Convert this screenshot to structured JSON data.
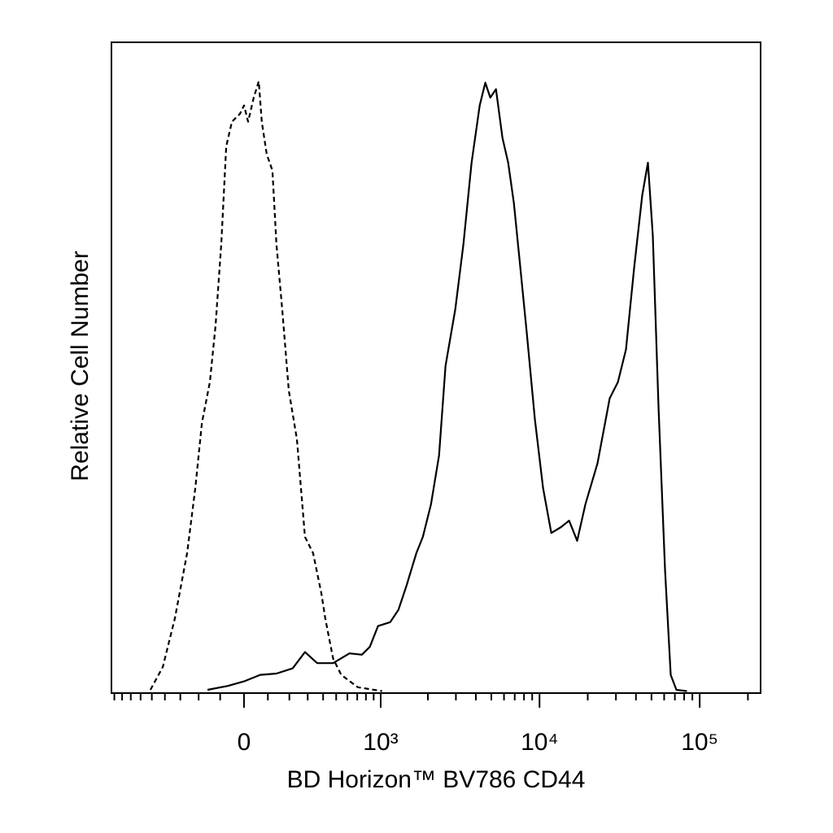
{
  "chart_data": {
    "type": "line",
    "xlabel": "BD Horizon™ BV786 CD44",
    "ylabel": "Relative Cell Number",
    "xscale": "biexponential",
    "xlim": [
      -940,
      240000
    ],
    "ylim": [
      0,
      100
    ],
    "xticks": [
      0,
      {
        "value": 1000,
        "label": "10³"
      },
      {
        "value": 10000,
        "label": "10⁴"
      },
      {
        "value": 100000,
        "label": "10⁵"
      }
    ],
    "xminor_ticks": [
      -900,
      -800,
      -700,
      -600,
      -500,
      -400,
      -300,
      -200,
      -100,
      100,
      200,
      300,
      400,
      500,
      600,
      700,
      800,
      900,
      2000,
      3000,
      4000,
      5000,
      6000,
      7000,
      8000,
      9000,
      20000,
      30000,
      40000,
      50000,
      60000,
      70000,
      80000,
      90000,
      200000
    ],
    "series": [
      {
        "color": "#000000",
        "dashed": true,
        "x": [
          -512,
          -415,
          -333,
          -261,
          -217,
          -184,
          -146,
          -120,
          -95,
          -74,
          -50,
          -17,
          0,
          17,
          40,
          61,
          74,
          95,
          120,
          138,
          165,
          197,
          239,
          284,
          333,
          388,
          415,
          475,
          543,
          706,
          1021
        ],
        "values": [
          0.5,
          4,
          11.5,
          21.5,
          31.5,
          41.5,
          47.8,
          56.5,
          69,
          84,
          87.8,
          89,
          90.3,
          87.8,
          91.5,
          94,
          87.8,
          82.8,
          80.3,
          69,
          59,
          46.5,
          39,
          24,
          21.5,
          15.3,
          11.5,
          5.3,
          2.8,
          0.9,
          0.3
        ]
      },
      {
        "color": "#000000",
        "dashed": false,
        "x": [
          -157,
          -67,
          0,
          67,
          138,
          217,
          284,
          360,
          475,
          620,
          752,
          849,
          961,
          1153,
          1301,
          1464,
          1690,
          1859,
          2091,
          2351,
          2583,
          2974,
          3343,
          3761,
          4227,
          4587,
          4925,
          5345,
          5872,
          6375,
          6918,
          7593,
          8334,
          9352,
          10525,
          11840,
          13614,
          15301,
          17189,
          19334,
          23023,
          27427,
          30859,
          34663,
          38953,
          43787,
          47533,
          50994,
          55341,
          60718,
          65894,
          71529,
          83283
        ],
        "values": [
          0.5,
          1.1,
          1.8,
          2.8,
          3,
          3.8,
          6.3,
          4.6,
          4.6,
          6.1,
          5.9,
          7.1,
          10.3,
          10.9,
          12.8,
          16.5,
          21.5,
          24,
          29,
          36.5,
          50.3,
          59,
          69,
          81.5,
          90.3,
          93.8,
          91.5,
          92.8,
          85.3,
          81.5,
          75.3,
          65.3,
          55.3,
          42.1,
          31.5,
          24.6,
          25.5,
          26.5,
          23.4,
          29,
          35.3,
          45.3,
          47.8,
          52.8,
          65.3,
          76.5,
          81.5,
          70.3,
          44,
          19,
          2.8,
          0.5,
          0.3
        ]
      }
    ]
  }
}
